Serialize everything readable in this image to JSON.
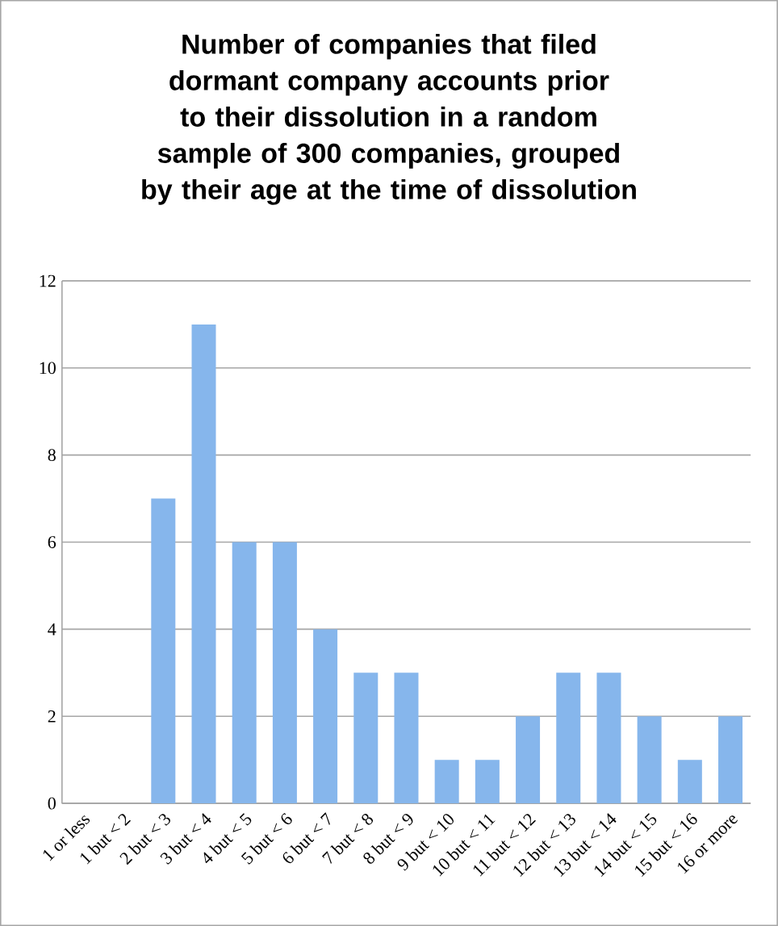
{
  "chart_data": {
    "type": "bar",
    "title": "Number of companies that filed dormant company accounts prior to their dissolution in a random sample of 300 companies, grouped by their age at the time of dissolution",
    "categories": [
      "1 or less",
      "1 but < 2",
      "2 but < 3",
      "3 but < 4",
      "4 but < 5",
      "5 but < 6",
      "6 but < 7",
      "7 but < 8",
      "8 but < 9",
      "9 but < 10",
      "10 but < 11",
      "11 but < 12",
      "12 but < 13",
      "13 but < 14",
      "14 but < 15",
      "15 but < 16",
      "16 or more"
    ],
    "values": [
      0,
      0,
      7,
      11,
      6,
      6,
      4,
      3,
      3,
      1,
      1,
      2,
      3,
      3,
      2,
      1,
      2
    ],
    "color": "#86b6ec",
    "ylim": [
      0,
      12
    ],
    "yticks": [
      0,
      2,
      4,
      6,
      8,
      10,
      12
    ],
    "grid": "y"
  }
}
